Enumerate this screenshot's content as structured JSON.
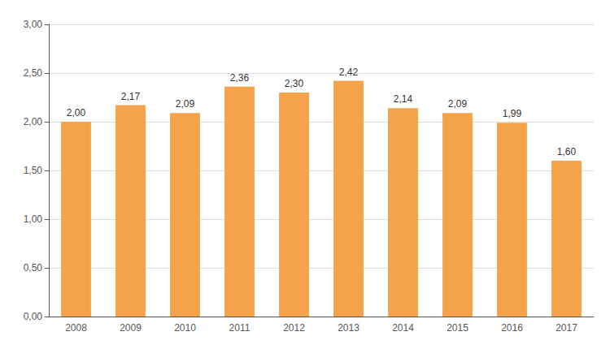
{
  "chart_data": {
    "type": "bar",
    "categories": [
      "2008",
      "2009",
      "2010",
      "2011",
      "2012",
      "2013",
      "2014",
      "2015",
      "2016",
      "2017"
    ],
    "values": [
      2.0,
      2.17,
      2.09,
      2.36,
      2.3,
      2.42,
      2.14,
      2.09,
      1.99,
      1.6
    ],
    "value_labels": [
      "2,00",
      "2,17",
      "2,09",
      "2,36",
      "2,30",
      "2,42",
      "2,14",
      "2,09",
      "1,99",
      "1,60"
    ],
    "data_labels": true,
    "color": "#F4A34A",
    "ylim": [
      0,
      3.0
    ],
    "yticks": [
      {
        "value": 0.0,
        "label": "0,00"
      },
      {
        "value": 0.5,
        "label": "0,50"
      },
      {
        "value": 1.0,
        "label": "1,00"
      },
      {
        "value": 1.5,
        "label": "1,50"
      },
      {
        "value": 2.0,
        "label": "2,00"
      },
      {
        "value": 2.5,
        "label": "2,50"
      },
      {
        "value": 3.0,
        "label": "3,00"
      }
    ],
    "grid": true
  }
}
